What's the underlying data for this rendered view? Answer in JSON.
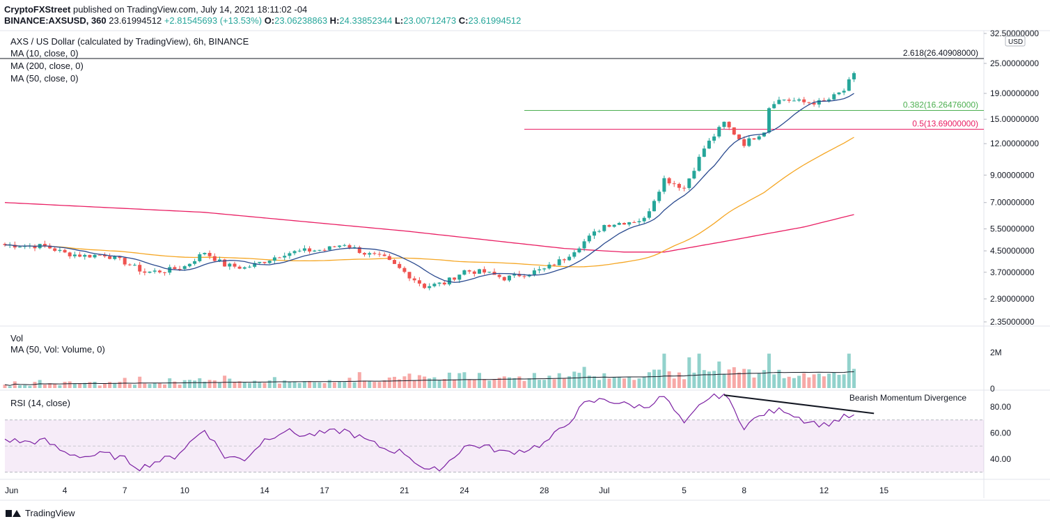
{
  "header": {
    "line1_author": "CryptoFXStreet",
    "line1_rest": "published on TradingView.com, July 14, 2021 18:11:02 -04",
    "line2_symbol": "BINANCE:AXSUSD, 360",
    "line2_last": "23.61994512",
    "line2_change": "+2.81545693 (+13.53%)",
    "ohlc": [
      {
        "k": "O:",
        "v": "23.06238863"
      },
      {
        "k": "H:",
        "v": "24.33852344"
      },
      {
        "k": "L:",
        "v": "23.00712473"
      },
      {
        "k": "C:",
        "v": "23.61994512"
      }
    ]
  },
  "chart_data": {
    "type": "candlestick",
    "title": "AXS / US Dollar (calculated by TradingView), 6h, BINANCE",
    "currency_badge": "USD",
    "legend": [
      "MA (10, close, 0)",
      "MA (200, close, 0)",
      "MA (50, close, 0)"
    ],
    "ma_colors": {
      "ma10": "#2a4a8f",
      "ma50": "#f5a623",
      "ma200": "#e91e63"
    },
    "candle_colors": {
      "up": "#26a69a",
      "down": "#ef5350"
    },
    "yscale": "log",
    "ylim": [
      2.2,
      32.5
    ],
    "y_ticks": [
      "32.50000000",
      "25.00000000",
      "19.00000000",
      "15.00000000",
      "12.00000000",
      "9.00000000",
      "7.00000000",
      "5.50000000",
      "4.50000000",
      "3.70000000",
      "2.90000000",
      "2.35000000"
    ],
    "x_ticks": [
      {
        "label": "Jun",
        "day": 0
      },
      {
        "label": "4",
        "day": 3
      },
      {
        "label": "7",
        "day": 6
      },
      {
        "label": "10",
        "day": 9
      },
      {
        "label": "14",
        "day": 13
      },
      {
        "label": "17",
        "day": 16
      },
      {
        "label": "21",
        "day": 20
      },
      {
        "label": "24",
        "day": 23
      },
      {
        "label": "28",
        "day": 27
      },
      {
        "label": "Jul",
        "day": 30
      },
      {
        "label": "5",
        "day": 34
      },
      {
        "label": "8",
        "day": 37
      },
      {
        "label": "12",
        "day": 41
      },
      {
        "label": "15",
        "day": 44
      }
    ],
    "fib_levels": [
      {
        "label": "2.618(26.40908000)",
        "value": 26.40908,
        "color": "#131722"
      },
      {
        "label": "0.382(16.26476000)",
        "value": 16.26476,
        "color": "#4caf50"
      },
      {
        "label": "0.5(13.69000000)",
        "value": 13.69,
        "color": "#e91e63"
      }
    ],
    "close_keypoints": [
      [
        0,
        4.75
      ],
      [
        1,
        4.72
      ],
      [
        2,
        4.7
      ],
      [
        3,
        4.4
      ],
      [
        4,
        4.3
      ],
      [
        5,
        4.35
      ],
      [
        6,
        4.05
      ],
      [
        7,
        3.7
      ],
      [
        8,
        3.75
      ],
      [
        9,
        3.9
      ],
      [
        10,
        4.45
      ],
      [
        11,
        3.95
      ],
      [
        12,
        3.85
      ],
      [
        13,
        4.1
      ],
      [
        14,
        4.4
      ],
      [
        15,
        4.5
      ],
      [
        16,
        4.55
      ],
      [
        17,
        4.8
      ],
      [
        18,
        4.4
      ],
      [
        19,
        4.2
      ],
      [
        20,
        3.7
      ],
      [
        21,
        3.25
      ],
      [
        22,
        3.35
      ],
      [
        23,
        3.75
      ],
      [
        24,
        3.7
      ],
      [
        25,
        3.5
      ],
      [
        26,
        3.65
      ],
      [
        27,
        3.8
      ],
      [
        28,
        4.2
      ],
      [
        29,
        4.9
      ],
      [
        30,
        5.7
      ],
      [
        31,
        5.85
      ],
      [
        32,
        6.0
      ],
      [
        33,
        8.7
      ],
      [
        34,
        8.0
      ],
      [
        35,
        11.5
      ],
      [
        36,
        14.5
      ],
      [
        37,
        12.0
      ],
      [
        38,
        13.5
      ],
      [
        38.3,
        17.5
      ],
      [
        39,
        18.0
      ],
      [
        40,
        17.5
      ],
      [
        41,
        17.5
      ],
      [
        42,
        19.5
      ],
      [
        42.6,
        23.6
      ]
    ],
    "volume": {
      "label": "Vol",
      "ma_label": "MA (50, Vol: Volume, 0)",
      "ticks": [
        "2M",
        "0"
      ],
      "ymax": 2500000
    },
    "rsi": {
      "label": "RSI (14, close)",
      "ticks": [
        "80.00",
        "60.00",
        "40.00"
      ],
      "band": [
        30,
        70
      ],
      "ylim": [
        25,
        90
      ],
      "keypoints": [
        [
          0,
          55
        ],
        [
          1,
          53
        ],
        [
          2,
          54
        ],
        [
          3,
          45
        ],
        [
          4,
          42
        ],
        [
          5,
          44
        ],
        [
          6,
          40
        ],
        [
          6.8,
          33
        ],
        [
          7.5,
          38
        ],
        [
          8.5,
          42
        ],
        [
          10,
          63
        ],
        [
          11,
          42
        ],
        [
          12,
          40
        ],
        [
          13,
          55
        ],
        [
          14,
          62
        ],
        [
          15,
          58
        ],
        [
          16,
          60
        ],
        [
          17,
          62
        ],
        [
          18,
          55
        ],
        [
          19,
          48
        ],
        [
          20,
          45
        ],
        [
          21.2,
          30
        ],
        [
          22,
          35
        ],
        [
          23,
          50
        ],
        [
          24,
          50
        ],
        [
          25,
          45
        ],
        [
          26,
          47
        ],
        [
          27,
          52
        ],
        [
          28,
          65
        ],
        [
          29,
          82
        ],
        [
          30,
          86
        ],
        [
          31,
          82
        ],
        [
          32,
          80
        ],
        [
          33,
          88
        ],
        [
          34,
          66
        ],
        [
          35,
          85
        ],
        [
          36,
          90
        ],
        [
          37,
          65
        ],
        [
          38,
          75
        ],
        [
          39,
          78
        ],
        [
          40,
          70
        ],
        [
          41,
          66
        ],
        [
          42,
          72
        ],
        [
          42.6,
          73
        ]
      ],
      "annotation": "Bearish Momentum Divergence"
    }
  },
  "footer": {
    "brand": "TradingView"
  }
}
